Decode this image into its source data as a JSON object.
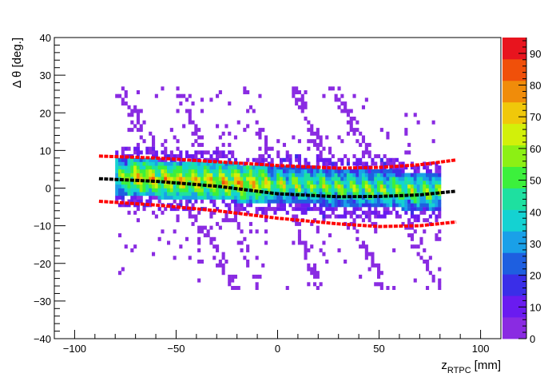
{
  "chart_data": {
    "type": "heatmap",
    "xlabel": "z",
    "xlabel_sub": "RTPC",
    "xlabel_unit": "[mm]",
    "ylabel": "Δ θ [deg.]",
    "xlim": [
      -110,
      110
    ],
    "ylim": [
      -40,
      40
    ],
    "x_ticks": [
      -100,
      -50,
      0,
      50,
      100
    ],
    "x_tick_labels": [
      "−100",
      "−50",
      "0",
      "50",
      "100"
    ],
    "y_ticks": [
      -40,
      -30,
      -20,
      -10,
      0,
      10,
      20,
      30,
      40
    ],
    "y_tick_labels": [
      "−40",
      "−30",
      "−20",
      "−10",
      "0",
      "10",
      "20",
      "30",
      "40"
    ],
    "colorbar": {
      "range": [
        0,
        95
      ],
      "ticks": [
        0,
        10,
        20,
        30,
        40,
        50,
        60,
        70,
        80,
        90
      ],
      "tick_labels": [
        "0",
        "10",
        "20",
        "30",
        "40",
        "50",
        "60",
        "70",
        "80",
        "90"
      ]
    },
    "hist_extent_x": [
      -80,
      80
    ],
    "core_band": {
      "center_at_minus80": 2.5,
      "center_at_plus80": -1.5,
      "halfwidth": 5
    },
    "fit_mean": {
      "x": [
        -88,
        -60,
        -30,
        0,
        30,
        50,
        70,
        88
      ],
      "y": [
        2.5,
        1.8,
        0.5,
        -1.5,
        -2.3,
        -2.2,
        -1.8,
        -0.8
      ]
    },
    "fit_upper": {
      "x": [
        -88,
        -60,
        -30,
        0,
        30,
        50,
        70,
        88
      ],
      "y": [
        8.5,
        8.0,
        7.0,
        6.0,
        5.3,
        5.5,
        6.2,
        7.5
      ]
    },
    "fit_lower": {
      "x": [
        -88,
        -60,
        -30,
        0,
        30,
        50,
        70,
        88
      ],
      "y": [
        -3.5,
        -4.5,
        -6.0,
        -8.0,
        -9.5,
        -10.2,
        -10.0,
        -9.0
      ]
    },
    "colors": {
      "fit_band": "#ff0000",
      "fit_mean": "#000000",
      "palette": [
        "#8a2be2",
        "#6a1bf0",
        "#3a2ee8",
        "#1e5fe0",
        "#1aa0e8",
        "#14d2d2",
        "#1ee0a0",
        "#3cf03c",
        "#8cf014",
        "#d2f00a",
        "#f0c80a",
        "#f08c0a",
        "#f0500a",
        "#e8141e"
      ]
    }
  }
}
